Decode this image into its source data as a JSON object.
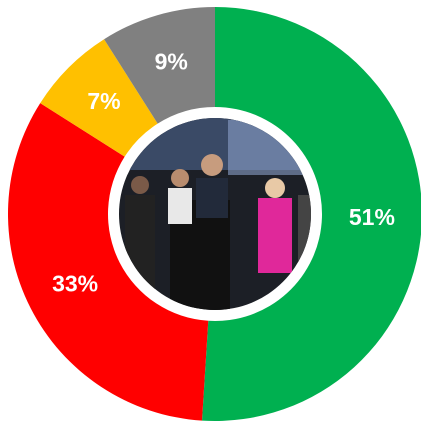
{
  "chart_data": {
    "type": "donut",
    "values": [
      51,
      33,
      7,
      9
    ],
    "value_labels": [
      "51%",
      "33%",
      "7%",
      "9%"
    ],
    "colors": [
      "#00b050",
      "#ff0000",
      "#ffc000",
      "#808080"
    ]
  }
}
